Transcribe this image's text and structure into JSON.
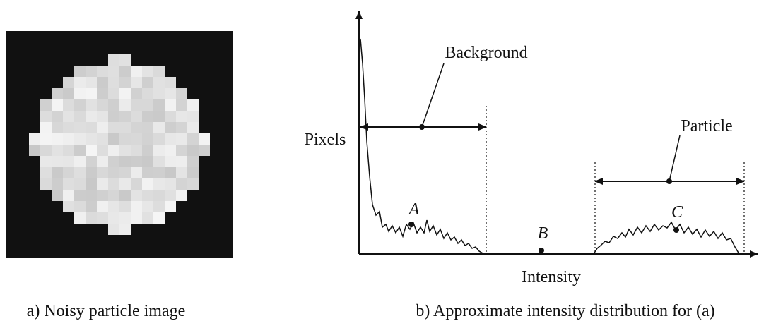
{
  "panel_a": {
    "caption": "a) Noisy particle image"
  },
  "panel_b": {
    "caption": "b) Approximate intensity distribution for (a)",
    "y_axis_label": "Pixels",
    "x_axis_label": "Intensity",
    "labels": {
      "background": "Background",
      "particle": "Particle",
      "a": "A",
      "b": "B",
      "c": "C"
    }
  }
}
